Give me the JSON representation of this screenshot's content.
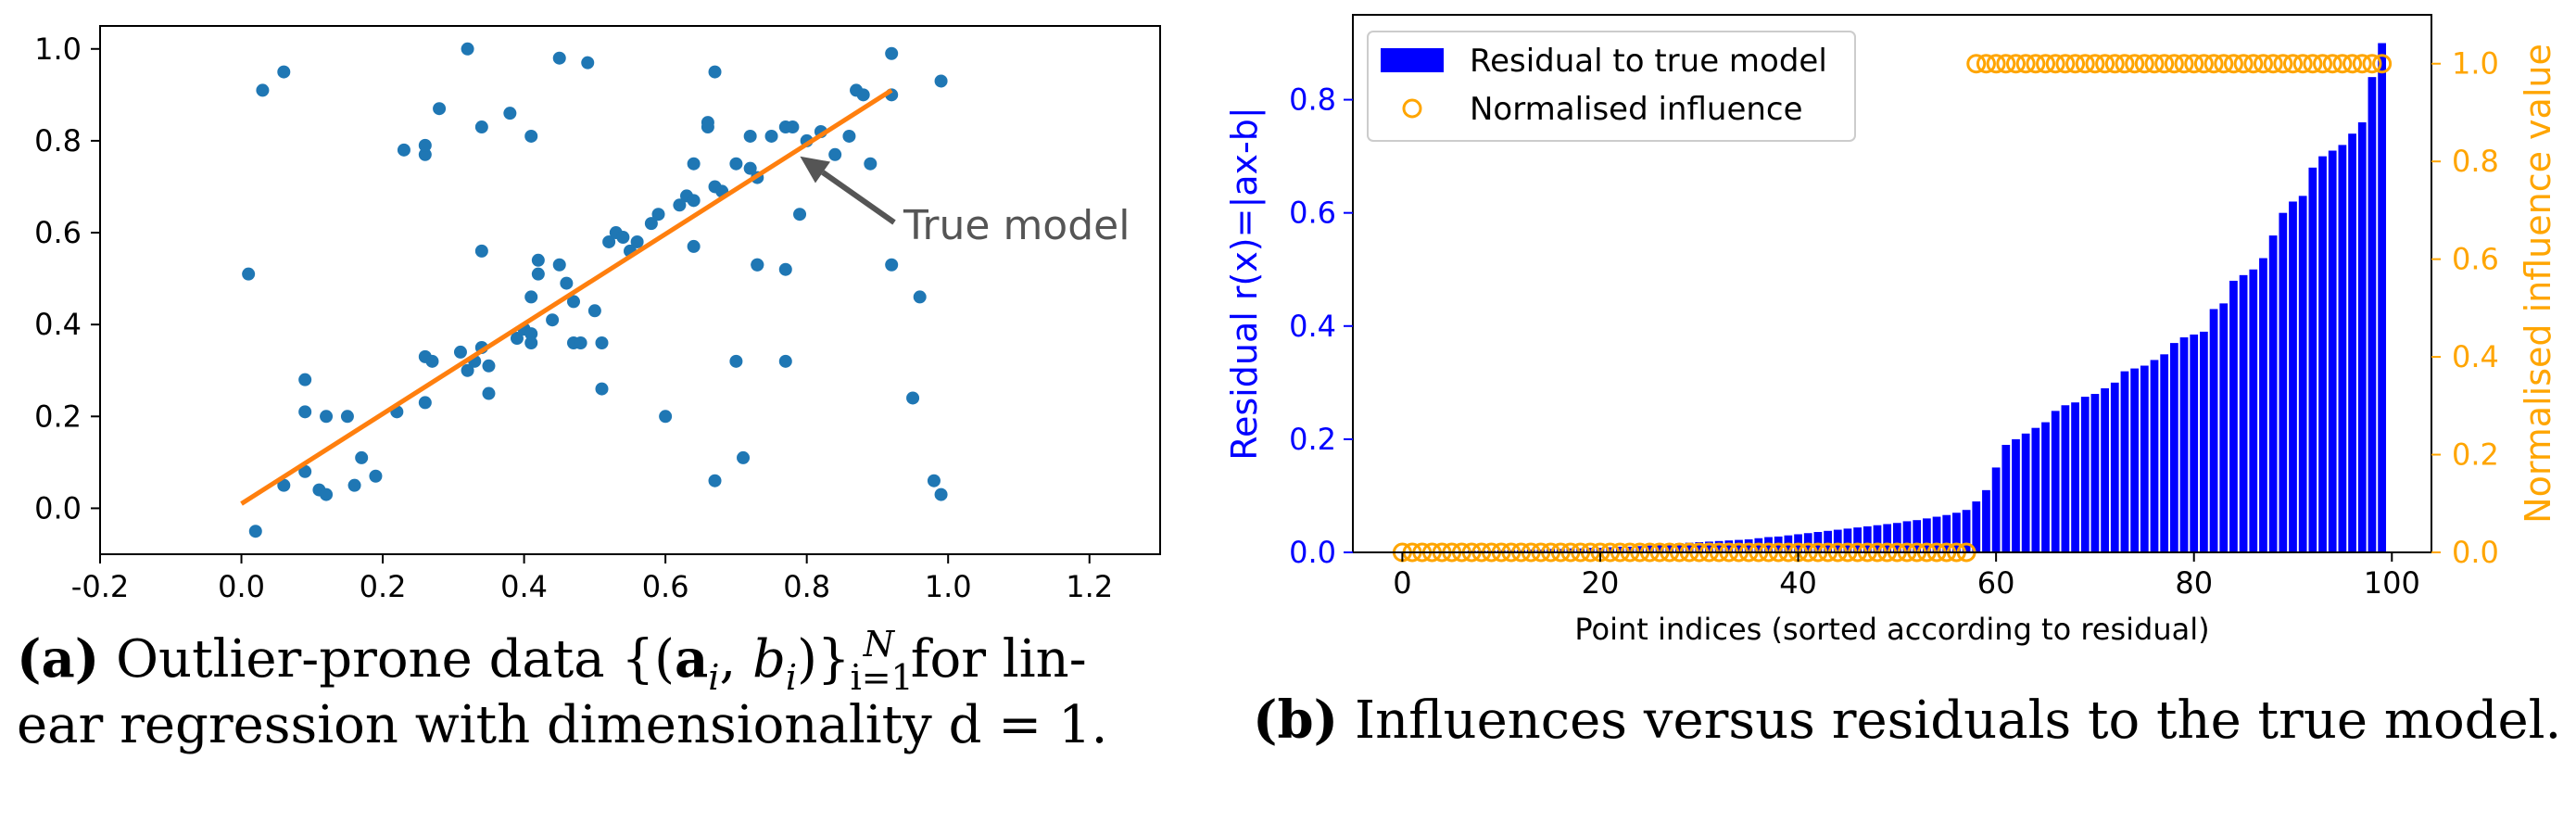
{
  "panel_a": {
    "caption_label": "(a)",
    "caption_line1_text": "Outlier-prone data",
    "caption_math": "{(a_i, b_i)}_{i=1}^N",
    "caption_line1_end": "for lin-",
    "caption_line2": "ear regression with dimensionality d = 1.",
    "annotation": "True model"
  },
  "panel_b": {
    "caption_label": "(b)",
    "caption_text": "Influences versus residuals to the true model."
  },
  "colors": {
    "points": "#1f77b4",
    "true_model": "#ff7f0e",
    "bars": "#0000ff",
    "influence": "#ffa500",
    "annotation": "#555555"
  },
  "chart_data": [
    {
      "type": "scatter",
      "title": "",
      "xlabel": "",
      "ylabel": "",
      "xlim": [
        -0.2,
        1.3
      ],
      "ylim": [
        -0.1,
        1.05
      ],
      "xticks": [
        "-0.2",
        "0.0",
        "0.2",
        "0.4",
        "0.6",
        "0.8",
        "1.0",
        "1.2"
      ],
      "yticks": [
        "0.0",
        "0.2",
        "0.4",
        "0.6",
        "0.8",
        "1.0"
      ],
      "grid": false,
      "line": {
        "x": [
          0.0,
          0.92
        ],
        "y": [
          0.01,
          0.91
        ]
      },
      "annotation": {
        "text": "True model",
        "points_to": [
          0.78,
          0.77
        ]
      },
      "points": [
        [
          0.01,
          0.51
        ],
        [
          0.03,
          0.91
        ],
        [
          0.06,
          0.95
        ],
        [
          0.02,
          -0.05
        ],
        [
          0.06,
          0.05
        ],
        [
          0.09,
          0.28
        ],
        [
          0.09,
          0.21
        ],
        [
          0.09,
          0.08
        ],
        [
          0.11,
          0.04
        ],
        [
          0.12,
          0.03
        ],
        [
          0.12,
          0.2
        ],
        [
          0.15,
          0.2
        ],
        [
          0.16,
          0.05
        ],
        [
          0.17,
          0.11
        ],
        [
          0.19,
          0.07
        ],
        [
          0.22,
          0.21
        ],
        [
          0.23,
          0.78
        ],
        [
          0.26,
          0.77
        ],
        [
          0.26,
          0.79
        ],
        [
          0.28,
          0.87
        ],
        [
          0.26,
          0.33
        ],
        [
          0.27,
          0.32
        ],
        [
          0.26,
          0.23
        ],
        [
          0.31,
          0.34
        ],
        [
          0.32,
          0.3
        ],
        [
          0.33,
          0.32
        ],
        [
          0.34,
          0.35
        ],
        [
          0.35,
          0.31
        ],
        [
          0.35,
          0.25
        ],
        [
          0.32,
          1.0
        ],
        [
          0.34,
          0.83
        ],
        [
          0.38,
          0.86
        ],
        [
          0.34,
          0.56
        ],
        [
          0.39,
          0.37
        ],
        [
          0.4,
          0.39
        ],
        [
          0.41,
          0.38
        ],
        [
          0.41,
          0.36
        ],
        [
          0.41,
          0.81
        ],
        [
          0.41,
          0.46
        ],
        [
          0.42,
          0.51
        ],
        [
          0.42,
          0.54
        ],
        [
          0.44,
          0.41
        ],
        [
          0.45,
          0.53
        ],
        [
          0.45,
          0.98
        ],
        [
          0.46,
          0.49
        ],
        [
          0.47,
          0.45
        ],
        [
          0.47,
          0.36
        ],
        [
          0.48,
          0.36
        ],
        [
          0.49,
          0.97
        ],
        [
          0.5,
          0.43
        ],
        [
          0.51,
          0.36
        ],
        [
          0.51,
          0.26
        ],
        [
          0.52,
          0.58
        ],
        [
          0.53,
          0.6
        ],
        [
          0.54,
          0.59
        ],
        [
          0.55,
          0.56
        ],
        [
          0.56,
          0.58
        ],
        [
          0.58,
          0.62
        ],
        [
          0.59,
          0.64
        ],
        [
          0.6,
          0.2
        ],
        [
          0.62,
          0.66
        ],
        [
          0.63,
          0.68
        ],
        [
          0.64,
          0.75
        ],
        [
          0.64,
          0.67
        ],
        [
          0.64,
          0.57
        ],
        [
          0.66,
          0.84
        ],
        [
          0.66,
          0.83
        ],
        [
          0.67,
          0.95
        ],
        [
          0.67,
          0.7
        ],
        [
          0.68,
          0.69
        ],
        [
          0.7,
          0.75
        ],
        [
          0.7,
          0.32
        ],
        [
          0.71,
          0.11
        ],
        [
          0.72,
          0.74
        ],
        [
          0.72,
          0.81
        ],
        [
          0.73,
          0.72
        ],
        [
          0.73,
          0.53
        ],
        [
          0.75,
          0.81
        ],
        [
          0.77,
          0.83
        ],
        [
          0.78,
          0.83
        ],
        [
          0.77,
          0.52
        ],
        [
          0.77,
          0.32
        ],
        [
          0.8,
          0.8
        ],
        [
          0.79,
          0.64
        ],
        [
          0.82,
          0.82
        ],
        [
          0.84,
          0.77
        ],
        [
          0.86,
          0.81
        ],
        [
          0.87,
          0.91
        ],
        [
          0.88,
          0.9
        ],
        [
          0.89,
          0.75
        ],
        [
          0.92,
          0.53
        ],
        [
          0.92,
          0.99
        ],
        [
          0.92,
          0.9
        ],
        [
          0.95,
          0.24
        ],
        [
          0.96,
          0.46
        ],
        [
          0.98,
          0.06
        ],
        [
          0.99,
          0.93
        ],
        [
          0.99,
          0.03
        ],
        [
          0.67,
          0.06
        ],
        [
          0.73,
          0.53
        ]
      ]
    },
    {
      "type": "bar",
      "title": "",
      "xlabel": "Point indices (sorted according to residual)",
      "ylabel": "Residual r(x)=|ax-b|",
      "ylabel_right": "Normalised influence value",
      "xlim": [
        -5,
        104
      ],
      "ylim": [
        0,
        0.95
      ],
      "ylim_right": [
        0,
        1.1
      ],
      "xticks": [
        "0",
        "20",
        "40",
        "60",
        "80",
        "100"
      ],
      "yticks": [
        "0.0",
        "0.2",
        "0.4",
        "0.6",
        "0.8"
      ],
      "yticks_right": [
        "0.0",
        "0.2",
        "0.4",
        "0.6",
        "0.8",
        "1.0"
      ],
      "legend": {
        "position": "top-left",
        "entries": [
          "Residual to true model",
          "Normalised influence"
        ]
      },
      "series": [
        {
          "name": "Residual to true model",
          "axis": "left",
          "values": [
            0.0,
            0.001,
            0.001,
            0.001,
            0.002,
            0.002,
            0.002,
            0.003,
            0.003,
            0.003,
            0.004,
            0.004,
            0.004,
            0.005,
            0.005,
            0.006,
            0.006,
            0.007,
            0.007,
            0.008,
            0.008,
            0.009,
            0.01,
            0.01,
            0.011,
            0.012,
            0.013,
            0.014,
            0.016,
            0.017,
            0.018,
            0.019,
            0.02,
            0.021,
            0.022,
            0.023,
            0.025,
            0.027,
            0.028,
            0.03,
            0.032,
            0.034,
            0.036,
            0.038,
            0.04,
            0.042,
            0.044,
            0.046,
            0.048,
            0.05,
            0.052,
            0.055,
            0.057,
            0.06,
            0.063,
            0.066,
            0.07,
            0.075,
            0.09,
            0.11,
            0.15,
            0.19,
            0.2,
            0.21,
            0.22,
            0.23,
            0.25,
            0.26,
            0.265,
            0.275,
            0.28,
            0.29,
            0.3,
            0.32,
            0.325,
            0.33,
            0.34,
            0.35,
            0.37,
            0.38,
            0.385,
            0.39,
            0.43,
            0.44,
            0.48,
            0.49,
            0.5,
            0.52,
            0.56,
            0.6,
            0.62,
            0.63,
            0.68,
            0.7,
            0.71,
            0.72,
            0.74,
            0.76,
            0.84,
            0.9
          ]
        },
        {
          "name": "Normalised influence",
          "axis": "right",
          "zero_count": 58,
          "one_count": 42,
          "values_description_from_plot": "points 0-57 at 0.0; points 58-99 at 1.0"
        }
      ]
    }
  ]
}
